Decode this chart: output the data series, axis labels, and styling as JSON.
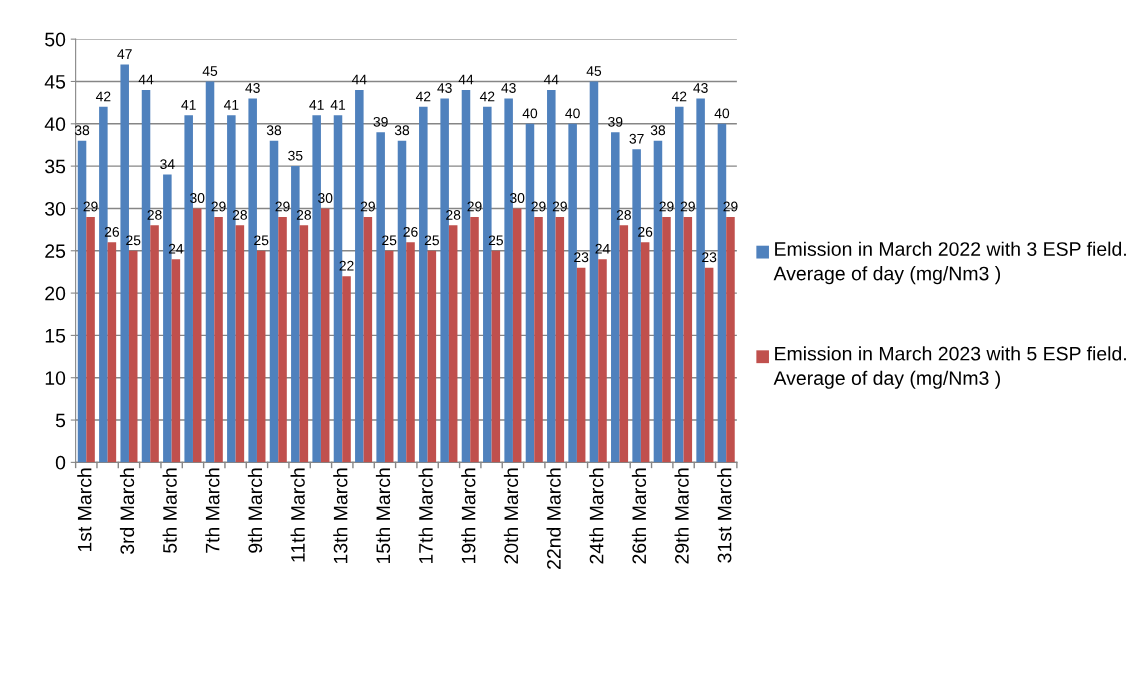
{
  "chart_data": {
    "type": "bar",
    "categories": [
      "1st March",
      null,
      "3rd March",
      null,
      "5th March",
      null,
      "7th March",
      null,
      "9th March",
      null,
      "11th March",
      null,
      "13th March",
      null,
      "15th March",
      null,
      "17th March",
      null,
      "19th March",
      null,
      "20th March",
      null,
      "22nd March",
      null,
      "24th March",
      null,
      "26th March",
      null,
      "29th March",
      null,
      "31st March"
    ],
    "series": [
      {
        "name": "Emission in March 2022 with 3 ESP field. Average of day (mg/Nm3 )",
        "color": "#4f81bd",
        "values": [
          38,
          42,
          47,
          44,
          34,
          41,
          45,
          41,
          43,
          38,
          35,
          41,
          41,
          44,
          39,
          38,
          42,
          43,
          44,
          42,
          43,
          40,
          44,
          40,
          45,
          39,
          37,
          38,
          42,
          43,
          40
        ]
      },
      {
        "name": "Emission in March 2023 with 5 ESP field. Average of day (mg/Nm3 )",
        "color": "#c0504d",
        "values": [
          29,
          26,
          25,
          28,
          24,
          30,
          29,
          28,
          25,
          29,
          28,
          30,
          22,
          29,
          25,
          26,
          25,
          28,
          29,
          25,
          30,
          29,
          29,
          23,
          24,
          28,
          26,
          29,
          29,
          23,
          29
        ]
      }
    ],
    "ylim": [
      0,
      50
    ],
    "yticks": [
      0,
      5,
      10,
      15,
      20,
      25,
      30,
      35,
      40,
      45,
      50
    ],
    "grid": "y",
    "legend": "right",
    "data_labels": true
  }
}
